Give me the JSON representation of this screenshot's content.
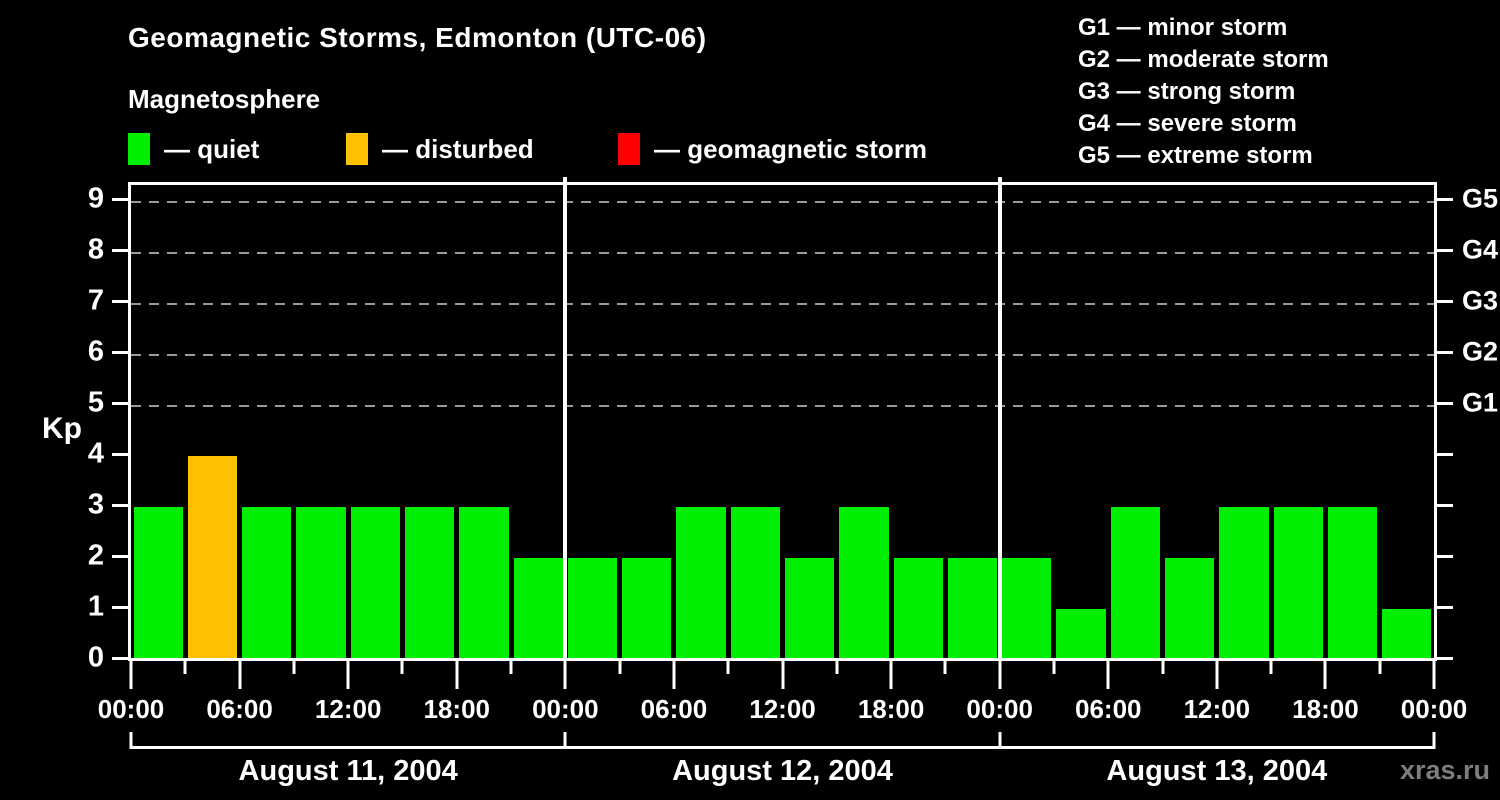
{
  "header": {
    "title": "Geomagnetic Storms, Edmonton (UTC-06)",
    "subtitle": "Magnetosphere",
    "legend": [
      {
        "name": "quiet",
        "label": "— quiet",
        "color": "#00ee00"
      },
      {
        "name": "disturbed",
        "label": "— disturbed",
        "color": "#ffc000"
      },
      {
        "name": "geomagnetic-storm",
        "label": "— geomagnetic storm",
        "color": "#ff0000"
      }
    ]
  },
  "storm_scale_legend": [
    "G1 — minor storm",
    "G2 — moderate storm",
    "G3 — strong storm",
    "G4 — severe storm",
    "G5 — extreme storm"
  ],
  "watermark": "xras.ru",
  "chart_data": {
    "type": "bar",
    "title": "Geomagnetic Storms, Edmonton (UTC-06)",
    "ylabel": "Kp",
    "ylim": [
      0,
      9
    ],
    "y_ticks": [
      0,
      1,
      2,
      3,
      4,
      5,
      6,
      7,
      8,
      9
    ],
    "gridlines_at": [
      5,
      6,
      7,
      8,
      9
    ],
    "right_axis_labels": [
      {
        "kp": 5,
        "label": "G1"
      },
      {
        "kp": 6,
        "label": "G2"
      },
      {
        "kp": 7,
        "label": "G3"
      },
      {
        "kp": 8,
        "label": "G4"
      },
      {
        "kp": 9,
        "label": "G5"
      }
    ],
    "hours_per_bar": 3,
    "x_labels_per_day": [
      "00:00",
      "06:00",
      "12:00",
      "18:00"
    ],
    "x_label_end": "00:00",
    "colors": {
      "quiet": "#00ee00",
      "disturbed": "#ffc000",
      "storm": "#ff0000",
      "axis": "#ffffff",
      "grid": "#9a9a9a"
    },
    "color_rule": {
      "quiet_max_kp": 3,
      "disturbed_max_kp": 4
    },
    "days": [
      {
        "date": "August 11, 2004",
        "kp_values": [
          3,
          4,
          3,
          3,
          3,
          3,
          3,
          2
        ]
      },
      {
        "date": "August 12, 2004",
        "kp_values": [
          2,
          2,
          3,
          3,
          2,
          3,
          2,
          2
        ]
      },
      {
        "date": "August 13, 2004",
        "kp_values": [
          2,
          1,
          3,
          2,
          3,
          3,
          3,
          1
        ]
      }
    ]
  }
}
